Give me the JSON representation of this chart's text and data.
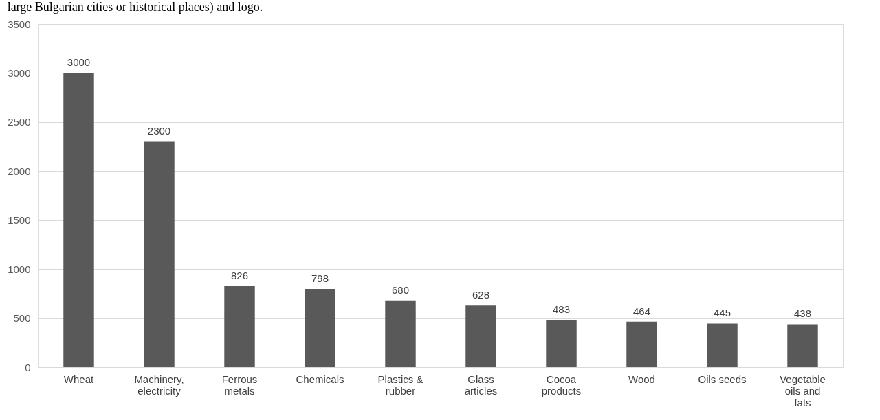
{
  "chart_data": {
    "type": "bar",
    "annotations": [
      "large Bulgarian cities or historical places) and logo."
    ],
    "categories": [
      "Wheat",
      "Machinery, electricity",
      "Ferrous metals",
      "Chemicals",
      "Plastics & rubber",
      "Glass articles",
      "Cocoa products",
      "Wood",
      "Oils seeds",
      "Vegetable oils and fats"
    ],
    "values": [
      3000,
      2300,
      826,
      798,
      680,
      628,
      483,
      464,
      445,
      438
    ],
    "color": "#595959",
    "ylim": [
      0,
      3500
    ],
    "yticks": [
      0,
      500,
      1000,
      1500,
      2000,
      2500,
      3000,
      3500
    ],
    "grid": "y",
    "data_labels": true
  }
}
